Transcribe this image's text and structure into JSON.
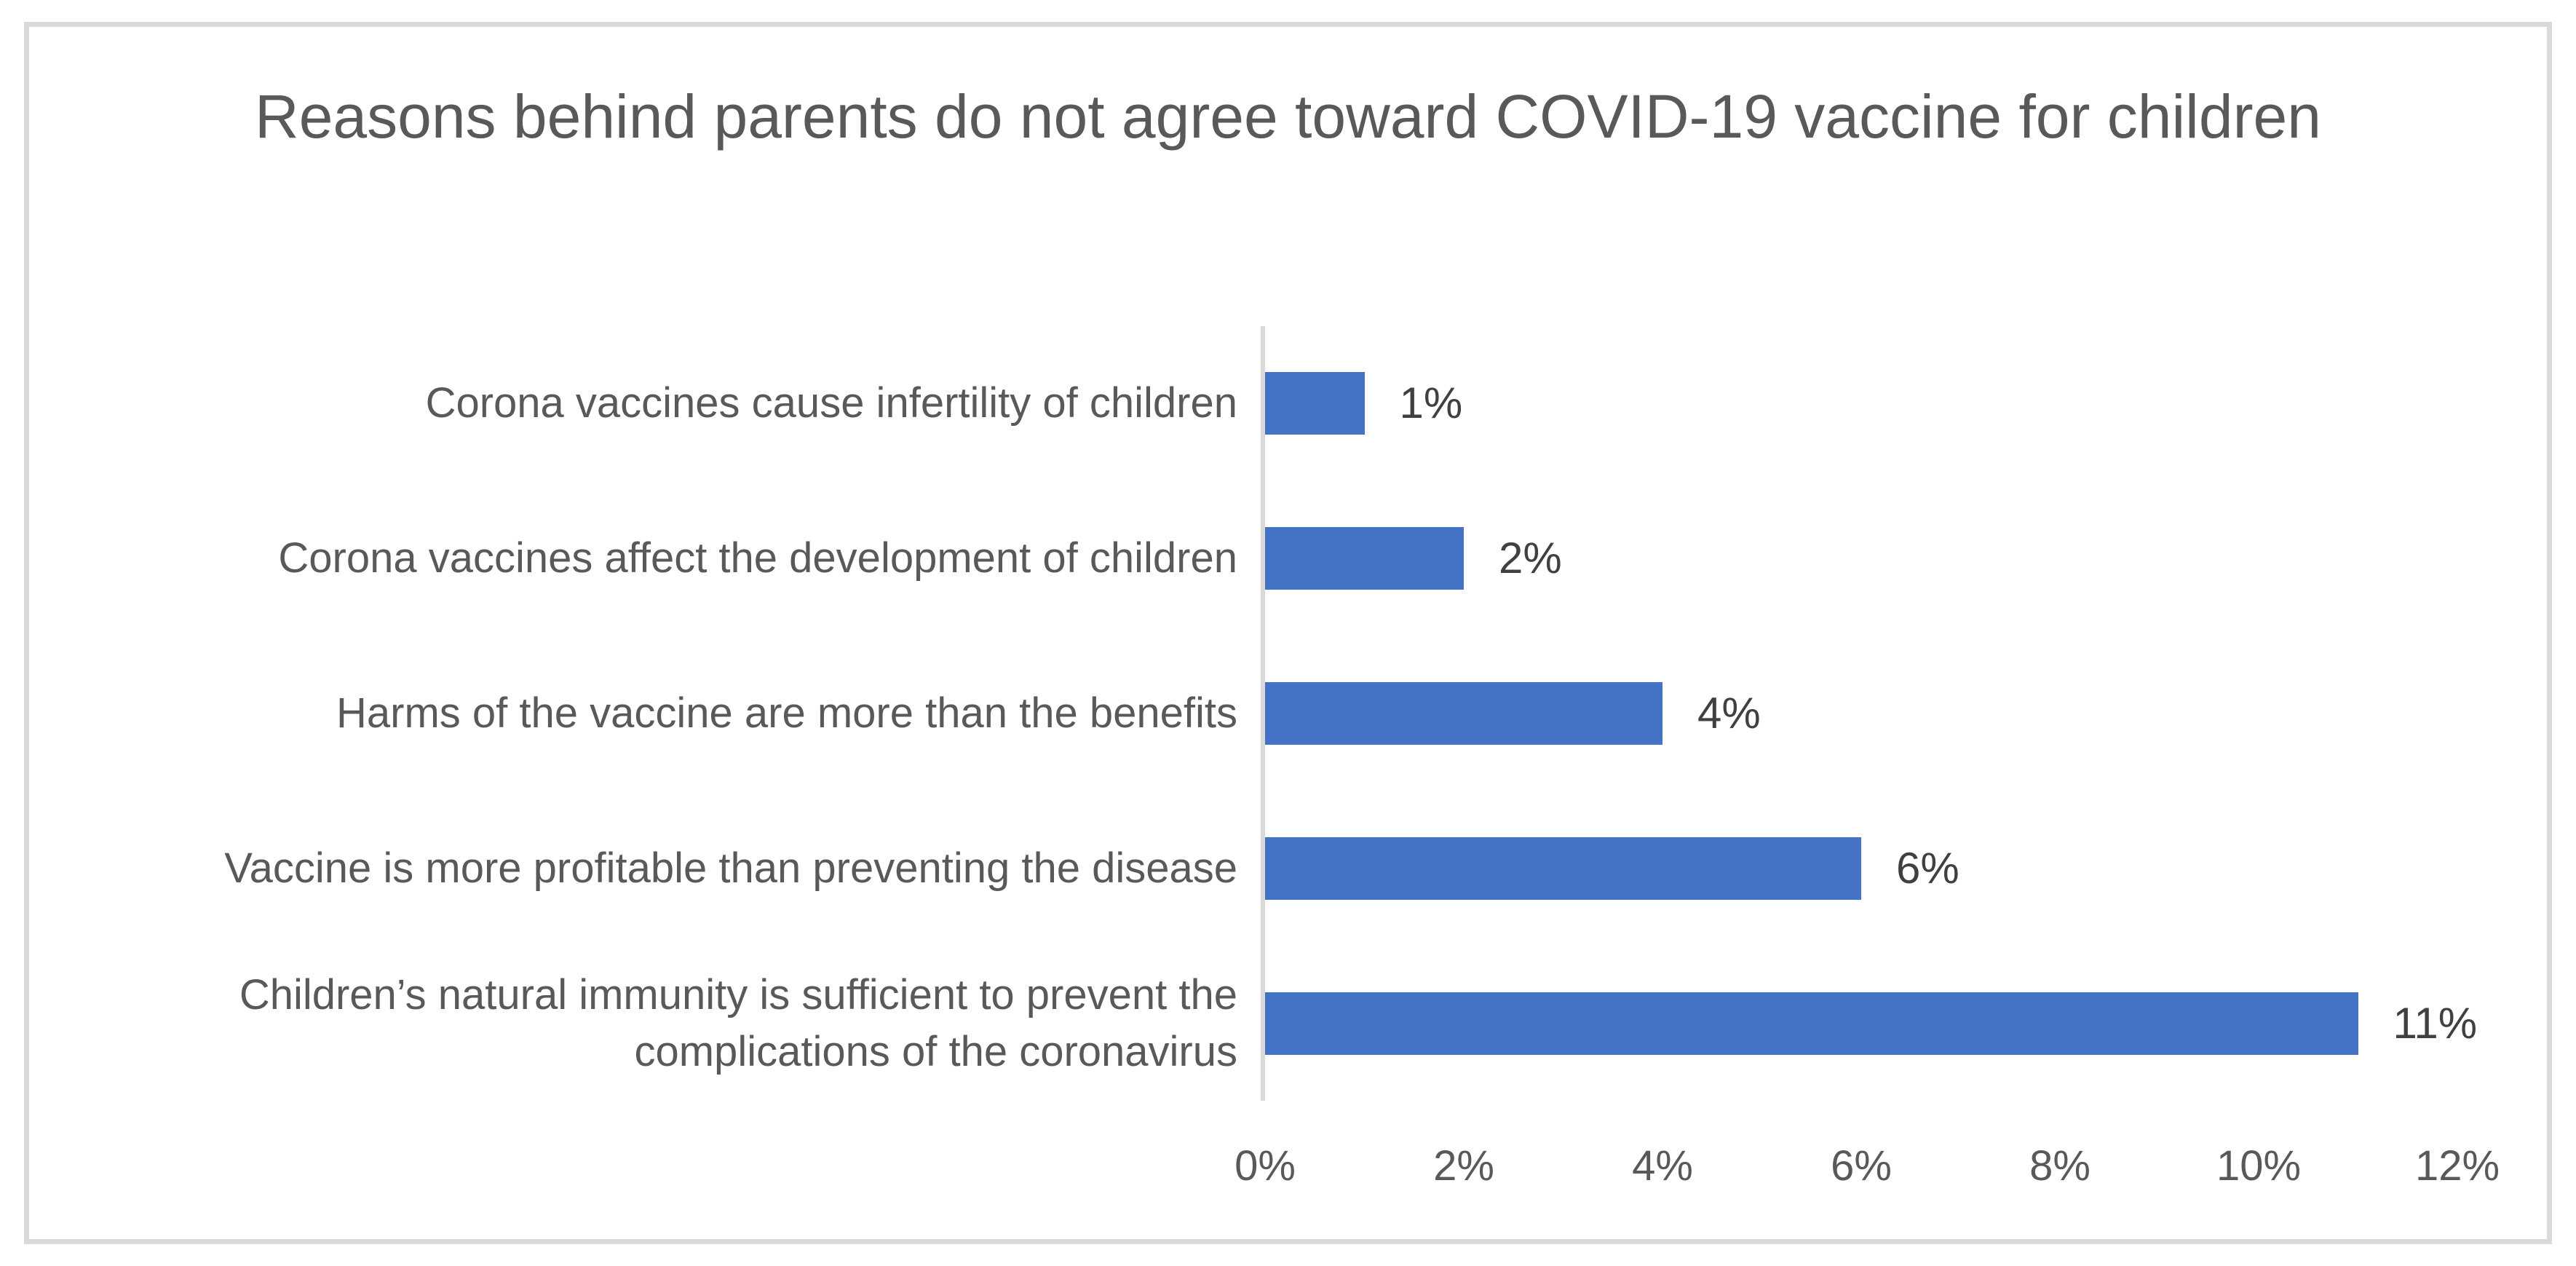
{
  "chart_data": {
    "type": "bar",
    "orientation": "horizontal",
    "title": "Reasons behind parents do not agree toward COVID-19 vaccine for children",
    "categories": [
      "Corona vaccines cause infertility of children",
      "Corona vaccines affect the development of children",
      "Harms of the vaccine are more than the benefits",
      "Vaccine is more profitable than preventing the disease",
      "Children’s natural immunity is sufficient to prevent the complications of the coronavirus"
    ],
    "values": [
      1,
      2,
      4,
      6,
      11
    ],
    "data_labels": [
      "1%",
      "2%",
      "4%",
      "6%",
      "11%"
    ],
    "x_ticks": [
      "0%",
      "2%",
      "4%",
      "6%",
      "8%",
      "10%",
      "12%"
    ],
    "xlim": [
      0,
      12
    ],
    "xlabel": "",
    "ylabel": "",
    "grid": false,
    "legend": false,
    "bar_color": "#4472C4",
    "title_color": "#595959",
    "axis_text_color": "#595959",
    "data_label_color": "#404040",
    "axis_line_color": "#D9D9D9",
    "border_color": "#D9D9D9"
  }
}
